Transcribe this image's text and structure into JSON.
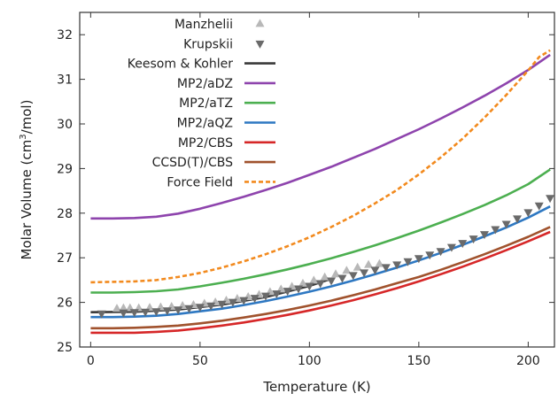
{
  "chart_data": {
    "type": "line",
    "xlabel": "Temperature (K)",
    "ylabel_main": "Molar Volume (cm",
    "ylabel_sup": "3",
    "ylabel_tail": "/mol)",
    "xlim": [
      -5,
      212
    ],
    "ylim": [
      25,
      32.5
    ],
    "xticks": [
      0,
      50,
      100,
      150,
      200
    ],
    "yticks": [
      25,
      26,
      27,
      28,
      29,
      30,
      31,
      32
    ],
    "legend_position": "top-left",
    "grid": false,
    "series": [
      {
        "name": "Manzhelii",
        "kind": "marker",
        "marker": "triangle-up",
        "color": "#b8b8b8",
        "x": [
          12,
          15,
          18,
          22,
          27,
          32,
          37,
          42,
          47,
          52,
          57,
          62,
          67,
          72,
          77,
          82,
          87,
          92,
          97,
          102,
          107,
          112,
          117,
          122,
          127,
          132
        ],
        "y": [
          25.86,
          25.87,
          25.87,
          25.87,
          25.88,
          25.89,
          25.9,
          25.92,
          25.94,
          25.97,
          26.0,
          26.04,
          26.08,
          26.12,
          26.17,
          26.23,
          26.29,
          26.35,
          26.42,
          26.49,
          26.56,
          26.63,
          26.71,
          26.78,
          26.84,
          26.86
        ]
      },
      {
        "name": "Krupskii",
        "kind": "marker",
        "marker": "triangle-down",
        "color": "#6a6a6a",
        "x": [
          5,
          15,
          20,
          25,
          30,
          35,
          40,
          45,
          50,
          55,
          60,
          65,
          70,
          75,
          80,
          85,
          90,
          95,
          100,
          105,
          110,
          115,
          120,
          125,
          130,
          135,
          140,
          145,
          150,
          155,
          160,
          165,
          170,
          175,
          180,
          185,
          190,
          195,
          200,
          205,
          210
        ],
        "y": [
          25.75,
          25.77,
          25.78,
          25.79,
          25.8,
          25.82,
          25.84,
          25.87,
          25.9,
          25.93,
          25.97,
          26.01,
          26.05,
          26.1,
          26.15,
          26.2,
          26.26,
          26.31,
          26.37,
          26.43,
          26.49,
          26.55,
          26.61,
          26.67,
          26.73,
          26.79,
          26.85,
          26.92,
          26.99,
          27.07,
          27.15,
          27.24,
          27.33,
          27.43,
          27.53,
          27.64,
          27.76,
          27.88,
          28.02,
          28.17,
          28.34
        ]
      },
      {
        "name": "Keesom & Kohler",
        "kind": "line",
        "color": "#3a3a3a",
        "dash": "",
        "x": [
          0,
          20,
          40,
          60,
          80,
          100,
          110
        ],
        "y": [
          25.78,
          25.79,
          25.84,
          25.95,
          26.12,
          26.37,
          26.53
        ]
      },
      {
        "name": "MP2/aDZ",
        "kind": "line",
        "color": "#8e44ad",
        "dash": "",
        "x": [
          0,
          10,
          20,
          30,
          40,
          50,
          60,
          70,
          80,
          90,
          100,
          110,
          120,
          130,
          140,
          150,
          160,
          170,
          180,
          190,
          200,
          210
        ],
        "y": [
          27.88,
          27.88,
          27.89,
          27.92,
          27.99,
          28.1,
          28.23,
          28.37,
          28.52,
          28.68,
          28.86,
          29.04,
          29.24,
          29.44,
          29.66,
          29.88,
          30.12,
          30.37,
          30.63,
          30.91,
          31.21,
          31.55
        ]
      },
      {
        "name": "MP2/aTZ",
        "kind": "line",
        "color": "#4caf50",
        "dash": "",
        "x": [
          0,
          10,
          20,
          30,
          40,
          50,
          60,
          70,
          80,
          90,
          100,
          110,
          120,
          130,
          140,
          150,
          160,
          170,
          180,
          190,
          200,
          210
        ],
        "y": [
          26.22,
          26.22,
          26.23,
          26.25,
          26.29,
          26.36,
          26.44,
          26.53,
          26.63,
          26.74,
          26.86,
          26.99,
          27.13,
          27.28,
          27.44,
          27.61,
          27.79,
          27.98,
          28.18,
          28.4,
          28.65,
          28.98
        ]
      },
      {
        "name": "MP2/aQZ",
        "kind": "line",
        "color": "#2e78c2",
        "dash": "",
        "x": [
          0,
          10,
          20,
          30,
          40,
          50,
          60,
          70,
          80,
          90,
          100,
          110,
          120,
          130,
          140,
          150,
          160,
          170,
          180,
          190,
          200,
          210
        ],
        "y": [
          25.67,
          25.67,
          25.68,
          25.7,
          25.74,
          25.8,
          25.86,
          25.94,
          26.03,
          26.13,
          26.24,
          26.36,
          26.49,
          26.63,
          26.78,
          26.94,
          27.11,
          27.29,
          27.48,
          27.68,
          27.9,
          28.15
        ]
      },
      {
        "name": "MP2/CBS",
        "kind": "line",
        "color": "#d62728",
        "dash": "",
        "x": [
          0,
          10,
          20,
          30,
          40,
          50,
          60,
          70,
          80,
          90,
          100,
          110,
          120,
          130,
          140,
          150,
          160,
          170,
          180,
          190,
          200,
          210
        ],
        "y": [
          25.32,
          25.32,
          25.32,
          25.34,
          25.37,
          25.42,
          25.48,
          25.55,
          25.63,
          25.72,
          25.82,
          25.93,
          26.05,
          26.18,
          26.32,
          26.47,
          26.63,
          26.8,
          26.98,
          27.17,
          27.37,
          27.58
        ]
      },
      {
        "name": "CCSD(T)/CBS",
        "kind": "line",
        "color": "#a0522d",
        "dash": "",
        "x": [
          0,
          10,
          20,
          30,
          40,
          50,
          60,
          70,
          80,
          90,
          100,
          110,
          120,
          130,
          140,
          150,
          160,
          170,
          180,
          190,
          200,
          210
        ],
        "y": [
          25.42,
          25.42,
          25.43,
          25.45,
          25.48,
          25.53,
          25.59,
          25.66,
          25.74,
          25.83,
          25.93,
          26.04,
          26.16,
          26.29,
          26.43,
          26.57,
          26.73,
          26.9,
          27.08,
          27.27,
          27.47,
          27.69
        ]
      },
      {
        "name": "Force Field",
        "kind": "line",
        "color": "#f28a1e",
        "dash": "5,3",
        "x": [
          0,
          10,
          20,
          30,
          40,
          50,
          60,
          70,
          80,
          90,
          100,
          110,
          120,
          130,
          140,
          150,
          160,
          170,
          180,
          190,
          200,
          205,
          210
        ],
        "y": [
          26.45,
          26.46,
          26.47,
          26.5,
          26.57,
          26.66,
          26.78,
          26.92,
          27.08,
          27.26,
          27.46,
          27.69,
          27.94,
          28.22,
          28.52,
          28.87,
          29.25,
          29.67,
          30.14,
          30.65,
          31.2,
          31.5,
          31.65
        ]
      }
    ]
  }
}
